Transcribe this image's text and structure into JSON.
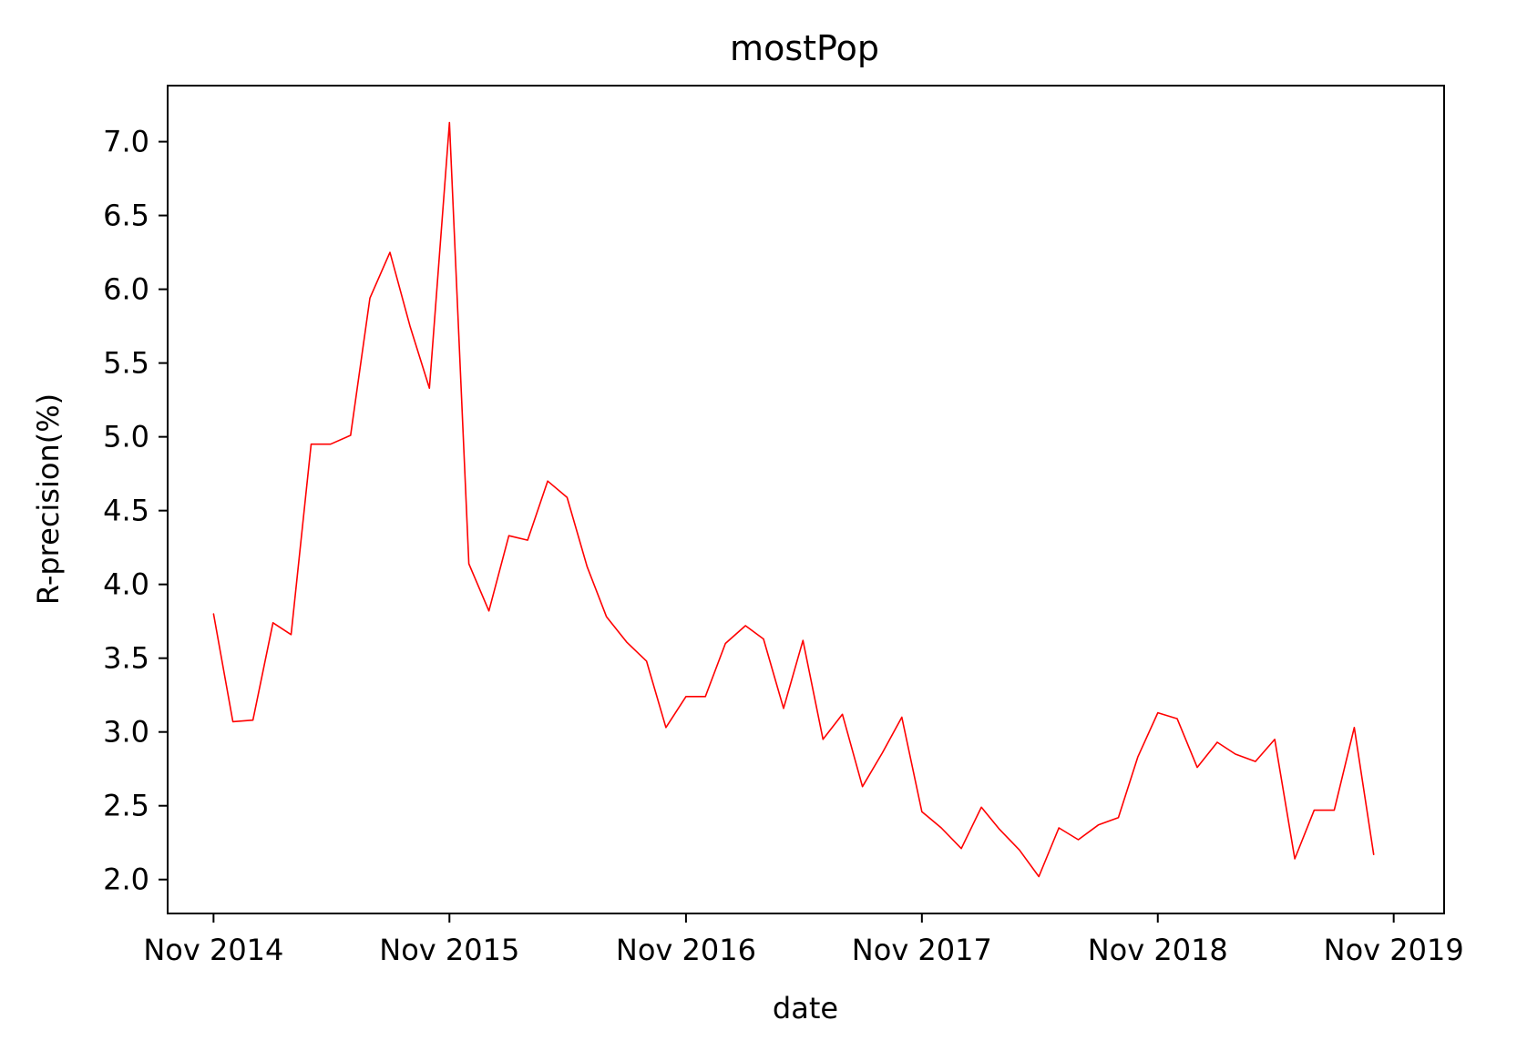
{
  "chart_data": {
    "type": "line",
    "title": "mostPop",
    "xlabel": "date",
    "ylabel": "R-precision(%)",
    "line_color": "#ff0000",
    "grid": false,
    "legend": "none",
    "x_ticks": [
      "Nov 2014",
      "Nov 2015",
      "Nov 2016",
      "Nov 2017",
      "Nov 2018",
      "Nov 2019"
    ],
    "y_ticks": [
      "2.0",
      "2.5",
      "3.0",
      "3.5",
      "4.0",
      "4.5",
      "5.0",
      "5.5",
      "6.0",
      "6.5",
      "7.0"
    ],
    "xlim": [
      "2014-08-22",
      "2020-01-18"
    ],
    "ylim": [
      1.77,
      7.38
    ],
    "x": [
      "2014-11-01",
      "2014-12-01",
      "2015-01-01",
      "2015-02-01",
      "2015-03-01",
      "2015-04-01",
      "2015-05-01",
      "2015-06-01",
      "2015-07-01",
      "2015-08-01",
      "2015-09-01",
      "2015-10-01",
      "2015-11-01",
      "2015-12-01",
      "2016-01-01",
      "2016-02-01",
      "2016-03-01",
      "2016-04-01",
      "2016-05-01",
      "2016-06-01",
      "2016-07-01",
      "2016-08-01",
      "2016-09-01",
      "2016-10-01",
      "2016-11-01",
      "2016-12-01",
      "2017-01-01",
      "2017-02-01",
      "2017-03-01",
      "2017-04-01",
      "2017-05-01",
      "2017-06-01",
      "2017-07-01",
      "2017-08-01",
      "2017-09-01",
      "2017-10-01",
      "2017-11-01",
      "2017-12-01",
      "2018-01-01",
      "2018-02-01",
      "2018-03-01",
      "2018-04-01",
      "2018-05-01",
      "2018-06-01",
      "2018-07-01",
      "2018-08-01",
      "2018-09-01",
      "2018-10-01",
      "2018-11-01",
      "2018-12-01",
      "2019-01-01",
      "2019-02-01",
      "2019-03-01",
      "2019-04-01",
      "2019-05-01",
      "2019-06-01",
      "2019-07-01",
      "2019-08-01",
      "2019-09-01",
      "2019-10-01"
    ],
    "series": [
      {
        "values": [
          3.8,
          3.07,
          3.08,
          3.74,
          3.66,
          4.95,
          4.95,
          5.01,
          5.94,
          6.25,
          5.75,
          5.33,
          7.13,
          4.14,
          3.82,
          4.33,
          4.3,
          4.7,
          4.59,
          4.12,
          3.78,
          3.61,
          3.48,
          3.03,
          3.24,
          3.24,
          3.6,
          3.72,
          3.63,
          3.16,
          3.62,
          2.95,
          3.12,
          2.63,
          2.86,
          3.1,
          2.46,
          2.35,
          2.21,
          2.49,
          2.34,
          2.2,
          2.02,
          2.35,
          2.27,
          2.37,
          2.42,
          2.83,
          3.13,
          3.09,
          2.76,
          2.93,
          2.85,
          2.8,
          2.95,
          2.14,
          2.47,
          2.47,
          3.03,
          2.17
        ]
      }
    ]
  }
}
